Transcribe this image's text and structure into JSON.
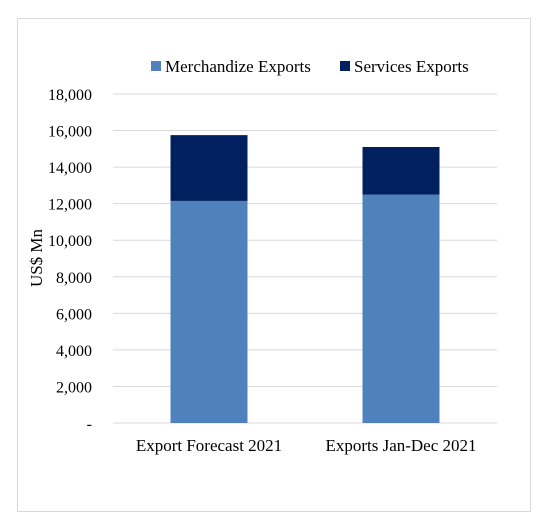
{
  "chart_data": {
    "type": "bar",
    "stacked": true,
    "categories": [
      "Export Forecast 2021",
      "Exports Jan-Dec 2021"
    ],
    "series": [
      {
        "name": "Merchandize Exports",
        "values": [
          12150,
          12500
        ],
        "color": "#4f81bd"
      },
      {
        "name": "Services Exports",
        "values": [
          3600,
          2600
        ],
        "color": "#002060"
      }
    ],
    "ylabel": "US$ Mn",
    "xlabel": "",
    "ylim": [
      0,
      18000
    ],
    "yticks": [
      0,
      2000,
      4000,
      6000,
      8000,
      10000,
      12000,
      14000,
      16000,
      18000
    ],
    "ytick_labels": [
      "-",
      "2,000",
      "4,000",
      "6,000",
      "8,000",
      "10,000",
      "12,000",
      "14,000",
      "16,000",
      "18,000"
    ],
    "grid": true,
    "legend_position": "top-right"
  }
}
